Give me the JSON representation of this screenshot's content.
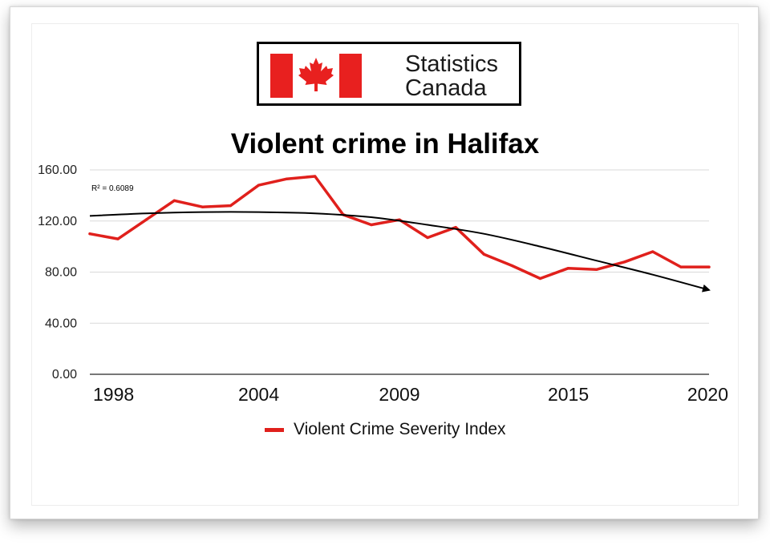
{
  "logo": {
    "line1": "Statistics",
    "line2": "Canada",
    "flag_red": "#e8201f"
  },
  "chart_data": {
    "type": "line",
    "title": "Violent crime in Halifax",
    "xlabel": "",
    "ylabel": "",
    "x": [
      1998,
      1999,
      2000,
      2001,
      2002,
      2003,
      2004,
      2005,
      2006,
      2007,
      2008,
      2009,
      2010,
      2011,
      2012,
      2013,
      2014,
      2015,
      2016,
      2017,
      2018,
      2019,
      2020
    ],
    "x_ticks": [
      "1998",
      "2004",
      "2009",
      "2015",
      "2020"
    ],
    "ylim": [
      0,
      160
    ],
    "y_ticks": [
      "0.00",
      "40.00",
      "80.00",
      "120.00",
      "160.00"
    ],
    "grid": true,
    "legend_position": "bottom",
    "series": [
      {
        "name": "Violent Crime Severity Index",
        "color": "#e0201c",
        "values": [
          110,
          106,
          121,
          136,
          131,
          132,
          148,
          153,
          155,
          125,
          117,
          121,
          107,
          115,
          94,
          85,
          75,
          83,
          82,
          88,
          96,
          84,
          84
        ]
      }
    ],
    "trendline": {
      "type": "polynomial",
      "color": "#000000",
      "label": "R² = 0.6089",
      "x": [
        1998,
        2000,
        2002,
        2004,
        2006,
        2008,
        2010,
        2012,
        2014,
        2016,
        2018,
        2020
      ],
      "values": [
        124,
        126,
        127,
        127,
        126,
        123,
        117,
        110,
        100,
        89,
        78,
        66
      ]
    }
  }
}
